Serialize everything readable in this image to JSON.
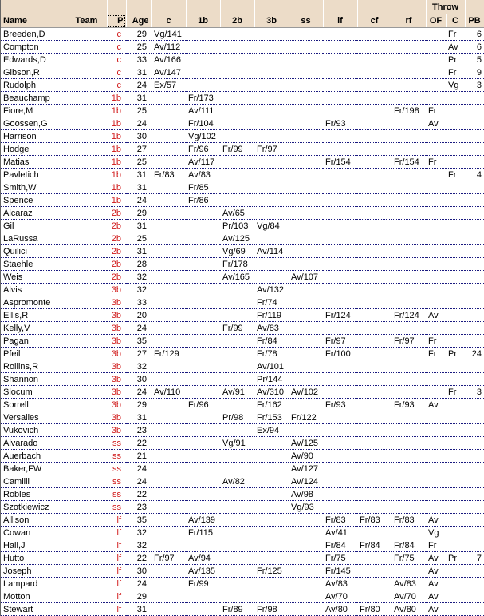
{
  "header": {
    "group": "Throw",
    "columns": [
      "Name",
      "Team",
      "P",
      "Age",
      "c",
      "1b",
      "2b",
      "3b",
      "ss",
      "lf",
      "cf",
      "rf",
      "OF",
      "C",
      "PB"
    ]
  },
  "colors": {
    "header_bg": "#ecdcc8",
    "position_text": "#d01818",
    "row_divider": "#1a1a80"
  },
  "rows": [
    [
      "Breeden,D",
      "",
      "c",
      "29",
      "Vg/141",
      "",
      "",
      "",
      "",
      "",
      "",
      "",
      "",
      "Fr",
      "6"
    ],
    [
      "Compton",
      "",
      "c",
      "25",
      "Av/112",
      "",
      "",
      "",
      "",
      "",
      "",
      "",
      "",
      "Av",
      "6"
    ],
    [
      "Edwards,D",
      "",
      "c",
      "33",
      "Av/166",
      "",
      "",
      "",
      "",
      "",
      "",
      "",
      "",
      "Pr",
      "5"
    ],
    [
      "Gibson,R",
      "",
      "c",
      "31",
      "Av/147",
      "",
      "",
      "",
      "",
      "",
      "",
      "",
      "",
      "Fr",
      "9"
    ],
    [
      "Rudolph",
      "",
      "c",
      "24",
      "Ex/57",
      "",
      "",
      "",
      "",
      "",
      "",
      "",
      "",
      "Vg",
      "3"
    ],
    [
      "Beauchamp",
      "",
      "1b",
      "31",
      "",
      "Fr/173",
      "",
      "",
      "",
      "",
      "",
      "",
      "",
      "",
      ""
    ],
    [
      "Fiore,M",
      "",
      "1b",
      "25",
      "",
      "Av/111",
      "",
      "",
      "",
      "",
      "",
      "Fr/198",
      "Fr",
      "",
      ""
    ],
    [
      "Goossen,G",
      "",
      "1b",
      "24",
      "",
      "Fr/104",
      "",
      "",
      "",
      "Fr/93",
      "",
      "",
      "Av",
      "",
      ""
    ],
    [
      "Harrison",
      "",
      "1b",
      "30",
      "",
      "Vg/102",
      "",
      "",
      "",
      "",
      "",
      "",
      "",
      "",
      ""
    ],
    [
      "Hodge",
      "",
      "1b",
      "27",
      "",
      "Fr/96",
      "Fr/99",
      "Fr/97",
      "",
      "",
      "",
      "",
      "",
      "",
      ""
    ],
    [
      "Matias",
      "",
      "1b",
      "25",
      "",
      "Av/117",
      "",
      "",
      "",
      "Fr/154",
      "",
      "Fr/154",
      "Fr",
      "",
      ""
    ],
    [
      "Pavletich",
      "",
      "1b",
      "31",
      "Fr/83",
      "Av/83",
      "",
      "",
      "",
      "",
      "",
      "",
      "",
      "Fr",
      "4"
    ],
    [
      "Smith,W",
      "",
      "1b",
      "31",
      "",
      "Fr/85",
      "",
      "",
      "",
      "",
      "",
      "",
      "",
      "",
      ""
    ],
    [
      "Spence",
      "",
      "1b",
      "24",
      "",
      "Fr/86",
      "",
      "",
      "",
      "",
      "",
      "",
      "",
      "",
      ""
    ],
    [
      "Alcaraz",
      "",
      "2b",
      "29",
      "",
      "",
      "Av/65",
      "",
      "",
      "",
      "",
      "",
      "",
      "",
      ""
    ],
    [
      "Gil",
      "",
      "2b",
      "31",
      "",
      "",
      "Pr/103",
      "Vg/84",
      "",
      "",
      "",
      "",
      "",
      "",
      ""
    ],
    [
      "LaRussa",
      "",
      "2b",
      "25",
      "",
      "",
      "Av/125",
      "",
      "",
      "",
      "",
      "",
      "",
      "",
      ""
    ],
    [
      "Quilici",
      "",
      "2b",
      "31",
      "",
      "",
      "Vg/69",
      "Av/114",
      "",
      "",
      "",
      "",
      "",
      "",
      ""
    ],
    [
      "Staehle",
      "",
      "2b",
      "28",
      "",
      "",
      "Fr/178",
      "",
      "",
      "",
      "",
      "",
      "",
      "",
      ""
    ],
    [
      "Weis",
      "",
      "2b",
      "32",
      "",
      "",
      "Av/165",
      "",
      "Av/107",
      "",
      "",
      "",
      "",
      "",
      ""
    ],
    [
      "Alvis",
      "",
      "3b",
      "32",
      "",
      "",
      "",
      "Av/132",
      "",
      "",
      "",
      "",
      "",
      "",
      ""
    ],
    [
      "Aspromonte",
      "",
      "3b",
      "33",
      "",
      "",
      "",
      "Fr/74",
      "",
      "",
      "",
      "",
      "",
      "",
      ""
    ],
    [
      "Ellis,R",
      "",
      "3b",
      "20",
      "",
      "",
      "",
      "Fr/119",
      "",
      "Fr/124",
      "",
      "Fr/124",
      "Av",
      "",
      ""
    ],
    [
      "Kelly,V",
      "",
      "3b",
      "24",
      "",
      "",
      "Fr/99",
      "Av/83",
      "",
      "",
      "",
      "",
      "",
      "",
      ""
    ],
    [
      "Pagan",
      "",
      "3b",
      "35",
      "",
      "",
      "",
      "Fr/84",
      "",
      "Fr/97",
      "",
      "Fr/97",
      "Fr",
      "",
      ""
    ],
    [
      "Pfeil",
      "",
      "3b",
      "27",
      "Fr/129",
      "",
      "",
      "Fr/78",
      "",
      "Fr/100",
      "",
      "",
      "Fr",
      "Pr",
      "24"
    ],
    [
      "Rollins,R",
      "",
      "3b",
      "32",
      "",
      "",
      "",
      "Av/101",
      "",
      "",
      "",
      "",
      "",
      "",
      ""
    ],
    [
      "Shannon",
      "",
      "3b",
      "30",
      "",
      "",
      "",
      "Pr/144",
      "",
      "",
      "",
      "",
      "",
      "",
      ""
    ],
    [
      "Slocum",
      "",
      "3b",
      "24",
      "Av/110",
      "",
      "Av/91",
      "Av/310",
      "Av/102",
      "",
      "",
      "",
      "",
      "Fr",
      "3"
    ],
    [
      "Sorrell",
      "",
      "3b",
      "29",
      "",
      "Fr/96",
      "",
      "Fr/162",
      "",
      "Fr/93",
      "",
      "Fr/93",
      "Av",
      "",
      ""
    ],
    [
      "Versalles",
      "",
      "3b",
      "31",
      "",
      "",
      "Pr/98",
      "Fr/153",
      "Fr/122",
      "",
      "",
      "",
      "",
      "",
      ""
    ],
    [
      "Vukovich",
      "",
      "3b",
      "23",
      "",
      "",
      "",
      "Ex/94",
      "",
      "",
      "",
      "",
      "",
      "",
      ""
    ],
    [
      "Alvarado",
      "",
      "ss",
      "22",
      "",
      "",
      "Vg/91",
      "",
      "Av/125",
      "",
      "",
      "",
      "",
      "",
      ""
    ],
    [
      "Auerbach",
      "",
      "ss",
      "21",
      "",
      "",
      "",
      "",
      "Av/90",
      "",
      "",
      "",
      "",
      "",
      ""
    ],
    [
      "Baker,FW",
      "",
      "ss",
      "24",
      "",
      "",
      "",
      "",
      "Av/127",
      "",
      "",
      "",
      "",
      "",
      ""
    ],
    [
      "Camilli",
      "",
      "ss",
      "24",
      "",
      "",
      "Av/82",
      "",
      "Av/124",
      "",
      "",
      "",
      "",
      "",
      ""
    ],
    [
      "Robles",
      "",
      "ss",
      "22",
      "",
      "",
      "",
      "",
      "Av/98",
      "",
      "",
      "",
      "",
      "",
      ""
    ],
    [
      "Szotkiewicz",
      "",
      "ss",
      "23",
      "",
      "",
      "",
      "",
      "Vg/93",
      "",
      "",
      "",
      "",
      "",
      ""
    ],
    [
      "Allison",
      "",
      "lf",
      "35",
      "",
      "Av/139",
      "",
      "",
      "",
      "Fr/83",
      "Fr/83",
      "Fr/83",
      "Av",
      "",
      ""
    ],
    [
      "Cowan",
      "",
      "lf",
      "32",
      "",
      "Fr/115",
      "",
      "",
      "",
      "Av/41",
      "",
      "",
      "Vg",
      "",
      ""
    ],
    [
      "Hall,J",
      "",
      "lf",
      "32",
      "",
      "",
      "",
      "",
      "",
      "Fr/84",
      "Fr/84",
      "Fr/84",
      "Fr",
      "",
      ""
    ],
    [
      "Hutto",
      "",
      "lf",
      "22",
      "Fr/97",
      "Av/94",
      "",
      "",
      "",
      "Fr/75",
      "",
      "Fr/75",
      "Av",
      "Pr",
      "7"
    ],
    [
      "Joseph",
      "",
      "lf",
      "30",
      "",
      "Av/135",
      "",
      "Fr/125",
      "",
      "Fr/145",
      "",
      "",
      "Av",
      "",
      ""
    ],
    [
      "Lampard",
      "",
      "lf",
      "24",
      "",
      "Fr/99",
      "",
      "",
      "",
      "Av/83",
      "",
      "Av/83",
      "Av",
      "",
      ""
    ],
    [
      "Motton",
      "",
      "lf",
      "29",
      "",
      "",
      "",
      "",
      "",
      "Av/70",
      "",
      "Av/70",
      "Av",
      "",
      ""
    ],
    [
      "Stewart",
      "",
      "lf",
      "31",
      "",
      "",
      "Fr/89",
      "Fr/98",
      "",
      "Av/80",
      "Fr/80",
      "Av/80",
      "Av",
      "",
      ""
    ]
  ]
}
